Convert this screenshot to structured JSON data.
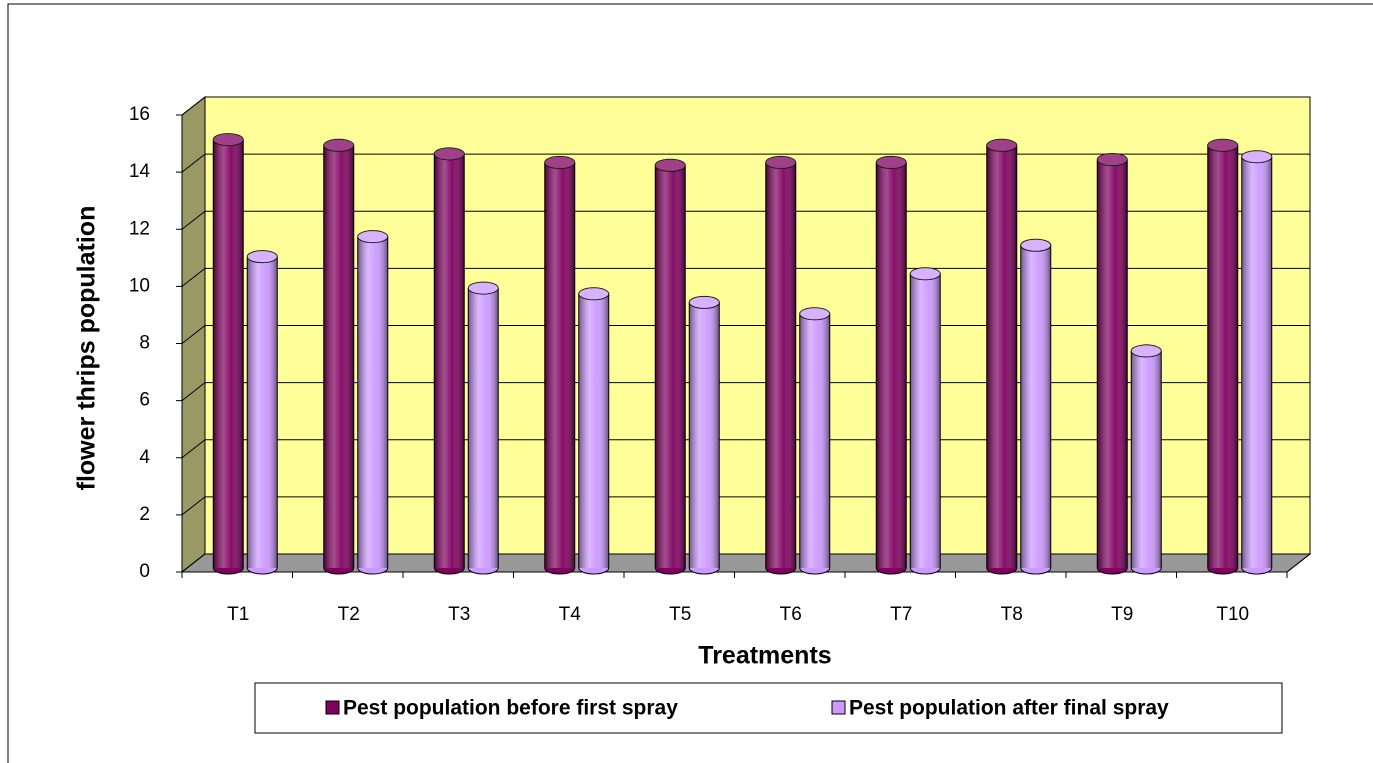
{
  "chart_data": {
    "type": "bar",
    "x_label": "Treatments",
    "y_label": "flower thrips population",
    "categories": [
      "T1",
      "T2",
      "T3",
      "T4",
      "T5",
      "T6",
      "T7",
      "T8",
      "T9",
      "T10"
    ],
    "series": [
      {
        "name": "Pest population before first spray",
        "color": "#800060",
        "values": [
          15.0,
          14.8,
          14.5,
          14.2,
          14.1,
          14.2,
          14.2,
          14.8,
          14.3,
          14.8
        ]
      },
      {
        "name": "Pest population after final spray",
        "color": "#cc99ff",
        "values": [
          10.9,
          11.6,
          9.8,
          9.6,
          9.3,
          8.9,
          10.3,
          11.3,
          7.6,
          14.4
        ]
      }
    ],
    "ylim": [
      0,
      16
    ],
    "yticks": [
      0,
      2,
      4,
      6,
      8,
      10,
      12,
      14,
      16
    ],
    "grid": true,
    "legend": "bottom"
  }
}
